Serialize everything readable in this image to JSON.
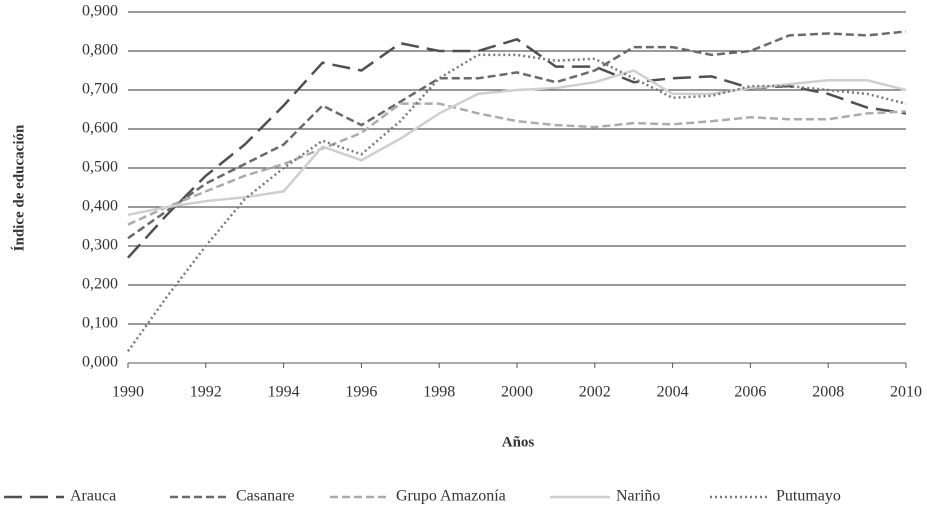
{
  "chart_data": {
    "type": "line",
    "x_label": "Años",
    "y_label": "Índice de educación",
    "x": [
      1990,
      1991,
      1992,
      1993,
      1994,
      1995,
      1996,
      1997,
      1998,
      1999,
      2000,
      2001,
      2002,
      2003,
      2004,
      2005,
      2006,
      2007,
      2008,
      2009,
      2010
    ],
    "xlim": [
      1990,
      2010
    ],
    "xticks": [
      1990,
      1992,
      1994,
      1996,
      1998,
      2000,
      2002,
      2004,
      2006,
      2008,
      2010
    ],
    "ylim": [
      0,
      0.9
    ],
    "yticks": [
      {
        "value": 0,
        "label": "0,000"
      },
      {
        "value": 0.1,
        "label": "0,100"
      },
      {
        "value": 0.2,
        "label": "0,200"
      },
      {
        "value": 0.3,
        "label": "0,300"
      },
      {
        "value": 0.4,
        "label": "0,400"
      },
      {
        "value": 0.5,
        "label": "0,500"
      },
      {
        "value": 0.6,
        "label": "0,600"
      },
      {
        "value": 0.7,
        "label": "0,700"
      },
      {
        "value": 0.8,
        "label": "0,800"
      },
      {
        "value": 0.9,
        "label": "0,900"
      }
    ],
    "grid": true,
    "legend": "bottom",
    "series": [
      {
        "name": "Arauca",
        "color": "#505050",
        "line_style": "long-dash",
        "values": [
          0.27,
          0.38,
          0.48,
          0.56,
          0.66,
          0.77,
          0.75,
          0.82,
          0.8,
          0.8,
          0.83,
          0.76,
          0.76,
          0.72,
          0.73,
          0.735,
          0.705,
          0.71,
          0.69,
          0.655,
          0.64
        ]
      },
      {
        "name": "Casanare",
        "color": "#6a6a6a",
        "line_style": "dash",
        "values": [
          0.32,
          0.39,
          0.46,
          0.51,
          0.56,
          0.66,
          0.61,
          0.67,
          0.73,
          0.73,
          0.745,
          0.72,
          0.75,
          0.81,
          0.81,
          0.79,
          0.8,
          0.84,
          0.845,
          0.84,
          0.85
        ]
      },
      {
        "name": "Grupo Amazonía",
        "color": "#ababab",
        "line_style": "dash",
        "values": [
          0.355,
          0.4,
          0.44,
          0.48,
          0.51,
          0.55,
          0.59,
          0.665,
          0.665,
          0.64,
          0.62,
          0.61,
          0.605,
          0.615,
          0.612,
          0.62,
          0.63,
          0.625,
          0.625,
          0.64,
          0.645
        ]
      },
      {
        "name": "Nariño",
        "color": "#cfcfcf",
        "line_style": "solid",
        "values": [
          0.38,
          0.4,
          0.415,
          0.425,
          0.44,
          0.555,
          0.52,
          0.575,
          0.64,
          0.69,
          0.7,
          0.705,
          0.72,
          0.75,
          0.69,
          0.69,
          0.705,
          0.715,
          0.725,
          0.725,
          0.7
        ]
      },
      {
        "name": "Putumayo",
        "color": "#7a7a7a",
        "line_style": "dotted",
        "values": [
          0.03,
          0.17,
          0.3,
          0.42,
          0.5,
          0.57,
          0.535,
          0.62,
          0.73,
          0.79,
          0.79,
          0.775,
          0.78,
          0.73,
          0.68,
          0.685,
          0.71,
          0.71,
          0.7,
          0.69,
          0.665
        ]
      }
    ]
  }
}
